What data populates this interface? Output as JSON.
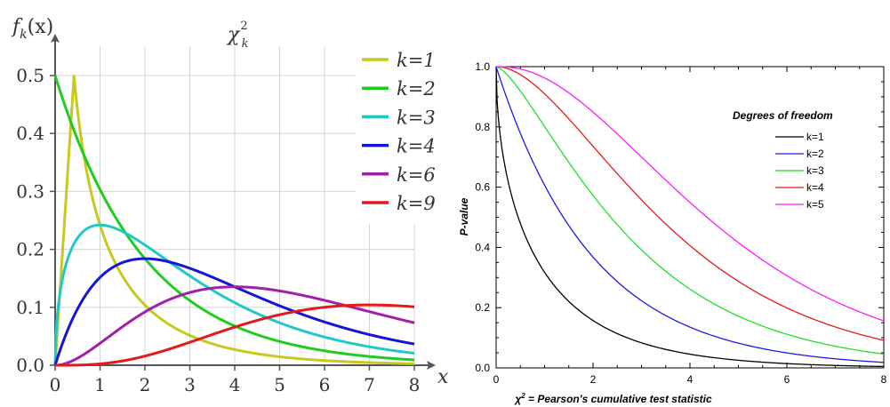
{
  "chart_data": [
    {
      "type": "line",
      "title": "χ²_k",
      "title_main": "χ",
      "title_sup": "2",
      "title_sub": "k",
      "ylabel": "f_k(x)",
      "ylabel_parts": {
        "f": "f",
        "k": "k",
        "arg": "(x)"
      },
      "xlabel": "x",
      "xlim": [
        0,
        8
      ],
      "ylim": [
        0,
        0.5
      ],
      "x_ticks": [
        0,
        1,
        2,
        3,
        4,
        5,
        6,
        7,
        8
      ],
      "y_ticks": [
        "0.0",
        "0.1",
        "0.2",
        "0.3",
        "0.4",
        "0.5"
      ],
      "grid": true,
      "legend_position": "top-right",
      "series": [
        {
          "name": "k=1",
          "k": 1,
          "color": "#c8c81e"
        },
        {
          "name": "k=2",
          "k": 2,
          "color": "#1fcc1f"
        },
        {
          "name": "k=3",
          "k": 3,
          "color": "#22c8c8"
        },
        {
          "name": "k=4",
          "k": 4,
          "color": "#1515d8"
        },
        {
          "name": "k=6",
          "k": 6,
          "color": "#a020a8"
        },
        {
          "name": "k=9",
          "k": 9,
          "color": "#e41a1a"
        }
      ]
    },
    {
      "type": "line",
      "title": "",
      "ylabel": "P-value",
      "xlabel": "χ² = Pearson's cumulative test statistic",
      "xlabel_parts": {
        "chi": "χ",
        "sup": "2",
        "rest": " = Pearson's cumulative test statistic"
      },
      "xlim": [
        0,
        8
      ],
      "ylim": [
        0,
        1.0
      ],
      "x_ticks": [
        "0",
        "2",
        "4",
        "6",
        "8"
      ],
      "y_ticks": [
        "0.0",
        "0.2",
        "0.4",
        "0.6",
        "0.8",
        "1.0"
      ],
      "grid": false,
      "legend_position": "right",
      "legend_title": "Degrees of freedom",
      "series": [
        {
          "name": "k=1",
          "k": 1,
          "color": "#000000"
        },
        {
          "name": "k=2",
          "k": 2,
          "color": "#1a1ae8"
        },
        {
          "name": "k=3",
          "k": 3,
          "color": "#22e022"
        },
        {
          "name": "k=4",
          "k": 4,
          "color": "#e41a1a"
        },
        {
          "name": "k=5",
          "k": 5,
          "color": "#ff1aff"
        }
      ]
    }
  ]
}
